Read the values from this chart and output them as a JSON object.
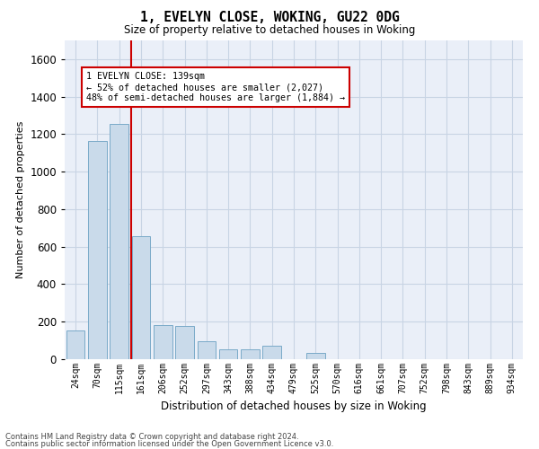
{
  "title": "1, EVELYN CLOSE, WOKING, GU22 0DG",
  "subtitle": "Size of property relative to detached houses in Woking",
  "xlabel": "Distribution of detached houses by size in Woking",
  "ylabel": "Number of detached properties",
  "bar_color": "#c9daea",
  "bar_edge_color": "#7aaac8",
  "categories": [
    "24sqm",
    "70sqm",
    "115sqm",
    "161sqm",
    "206sqm",
    "252sqm",
    "297sqm",
    "343sqm",
    "388sqm",
    "434sqm",
    "479sqm",
    "525sqm",
    "570sqm",
    "616sqm",
    "661sqm",
    "707sqm",
    "752sqm",
    "798sqm",
    "843sqm",
    "889sqm",
    "934sqm"
  ],
  "values": [
    155,
    1165,
    1255,
    655,
    180,
    175,
    95,
    55,
    55,
    70,
    0,
    35,
    0,
    0,
    0,
    0,
    0,
    0,
    0,
    0,
    0
  ],
  "vline_x": 2.55,
  "vline_color": "#cc0000",
  "annotation_line1": "1 EVELYN CLOSE: 139sqm",
  "annotation_line2": "← 52% of detached houses are smaller (2,027)",
  "annotation_line3": "48% of semi-detached houses are larger (1,884) →",
  "annotation_box_color": "#ffffff",
  "annotation_box_edge": "#cc0000",
  "ylim": [
    0,
    1700
  ],
  "yticks": [
    0,
    200,
    400,
    600,
    800,
    1000,
    1200,
    1400,
    1600
  ],
  "grid_color": "#c8d4e4",
  "bg_color": "#eaeff8",
  "footer1": "Contains HM Land Registry data © Crown copyright and database right 2024.",
  "footer2": "Contains public sector information licensed under the Open Government Licence v3.0."
}
